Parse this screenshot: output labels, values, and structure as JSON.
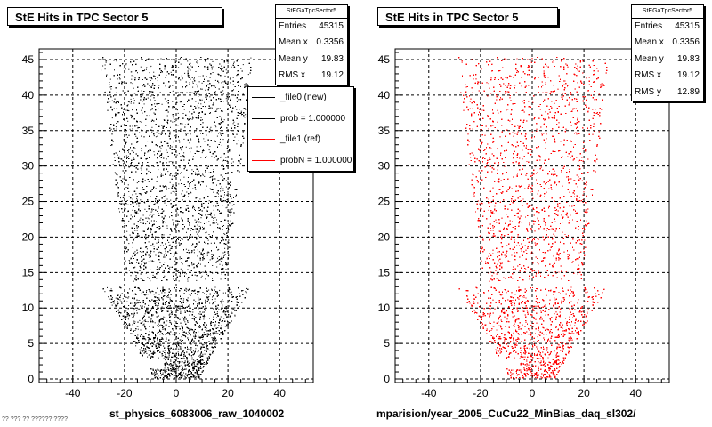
{
  "chart_data": [
    {
      "type": "scatter",
      "title": "StE Hits in TPC Sector 5",
      "xlabel": "st_physics_6083006_raw_1040002",
      "ylabel": "",
      "xlim": [
        -53,
        53
      ],
      "ylim": [
        -0.5,
        46.5
      ],
      "xticks": [
        -40,
        -20,
        0,
        20,
        40
      ],
      "yticks": [
        0,
        5,
        10,
        15,
        20,
        25,
        30,
        35,
        40,
        45
      ],
      "grid": true,
      "legend_placement": "top-right",
      "marker_color": "#000000",
      "stats": {
        "name": "StEGaTpcSector5",
        "rows": [
          {
            "label": "Entries",
            "value": "45315"
          },
          {
            "label": "Mean x",
            "value": "0.3356"
          },
          {
            "label": "Mean y",
            "value": "19.83"
          },
          {
            "label": "RMS x",
            "value": "19.12"
          }
        ]
      },
      "legend": [
        {
          "label": "_file0 (new)",
          "color": "#000000"
        },
        {
          "label": "prob = 1.000000",
          "color": "#000000"
        },
        {
          "label": "_file1 (ref)",
          "color": "#ff0000"
        },
        {
          "label": "probN = 1.000000",
          "color": "#ff0000"
        }
      ]
    },
    {
      "type": "scatter",
      "title": "StE Hits in TPC Sector 5",
      "xlabel": "mparision/year_2005_CuCu22_MinBias_daq_sl302/",
      "ylabel": "",
      "xlim": [
        -53,
        53
      ],
      "ylim": [
        -0.5,
        46.5
      ],
      "xticks": [
        -40,
        -20,
        0,
        20,
        40
      ],
      "yticks": [
        0,
        5,
        10,
        15,
        20,
        25,
        30,
        35,
        40,
        45
      ],
      "grid": true,
      "marker_color": "#ff0000",
      "stats": {
        "name": "StEGaTpcSector5",
        "rows": [
          {
            "label": "Entries",
            "value": "45315"
          },
          {
            "label": "Mean x",
            "value": "0.3356"
          },
          {
            "label": "Mean y",
            "value": "19.83"
          },
          {
            "label": "RMS x",
            "value": "19.12"
          },
          {
            "label": "RMS y",
            "value": "12.89"
          }
        ]
      }
    }
  ],
  "footer_text": "?? ??? ?? ?????? ????"
}
